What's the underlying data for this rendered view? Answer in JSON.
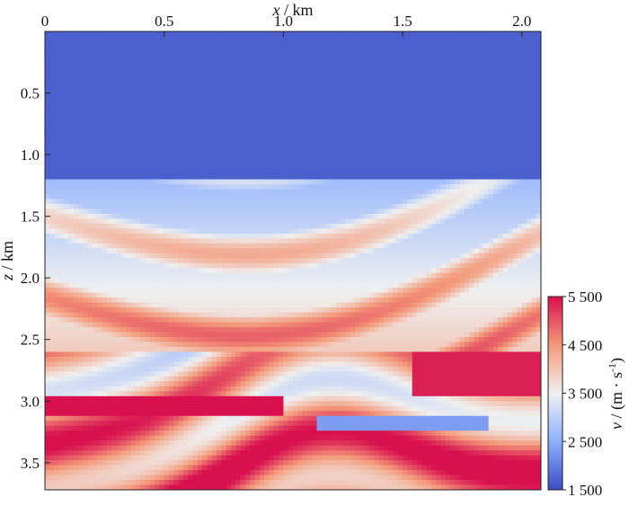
{
  "chart_data": {
    "type": "heatmap",
    "title": "",
    "xlabel": {
      "symbol": "x",
      "unit": " / km"
    },
    "ylabel": {
      "symbol": "z",
      "unit": " / km"
    },
    "xlim": [
      0,
      2.08
    ],
    "ylim": [
      0,
      3.72
    ],
    "x_ticks": [
      {
        "value": 0,
        "label": "0"
      },
      {
        "value": 0.5,
        "label": "0.5"
      },
      {
        "value": 1.0,
        "label": "1.0"
      },
      {
        "value": 1.5,
        "label": "1.5"
      },
      {
        "value": 2.0,
        "label": "2.0"
      }
    ],
    "y_ticks": [
      {
        "value": 0.5,
        "label": "0.5"
      },
      {
        "value": 1.0,
        "label": "1.0"
      },
      {
        "value": 1.5,
        "label": "1.5"
      },
      {
        "value": 2.0,
        "label": "2.0"
      },
      {
        "value": 2.5,
        "label": "2.5"
      },
      {
        "value": 3.0,
        "label": "3.0"
      },
      {
        "value": 3.5,
        "label": "3.5"
      }
    ],
    "colorbar": {
      "label": {
        "symbol": "v",
        "unit": " / (m · s",
        "sup": "-1",
        "close": ")"
      },
      "range": [
        1500,
        5500
      ],
      "ticks": [
        {
          "value": 1500,
          "label": "1 500"
        },
        {
          "value": 2500,
          "label": "2 500"
        },
        {
          "value": 3500,
          "label": "3 500"
        },
        {
          "value": 4500,
          "label": "4 500"
        },
        {
          "value": 5500,
          "label": "5 500"
        }
      ],
      "colors": [
        "#3b4cc0",
        "#8db0fe",
        "#f0f0f0",
        "#f49a7b",
        "#d8104f"
      ]
    },
    "features": [
      {
        "name": "low-velocity shallow layer",
        "x": [
          0,
          2.08
        ],
        "z": [
          0,
          1.2
        ],
        "v": 1700
      },
      {
        "name": "high-velocity salt-like wedge",
        "x": [
          0,
          1.0
        ],
        "z": [
          2.98,
          3.12
        ],
        "v": 5500
      },
      {
        "name": "high-velocity right wedge",
        "x": [
          1.55,
          2.08
        ],
        "z": [
          2.6,
          2.95
        ],
        "v": 5400
      },
      {
        "name": "low-velocity lens",
        "x": [
          1.15,
          1.85
        ],
        "z": [
          3.12,
          3.22
        ],
        "v": 2300
      }
    ]
  }
}
